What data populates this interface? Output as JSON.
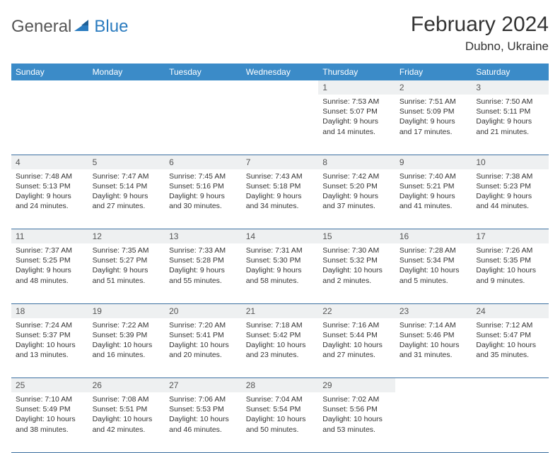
{
  "brand": {
    "part1": "General",
    "part2": "Blue"
  },
  "header": {
    "title": "February 2024",
    "location": "Dubno, Ukraine"
  },
  "colors": {
    "header_bg": "#3b8bc8",
    "header_text": "#ffffff",
    "daynum_bg": "#eef0f1",
    "rule": "#3b6fa0",
    "brand_blue": "#2a7bbf"
  },
  "daysOfWeek": [
    "Sunday",
    "Monday",
    "Tuesday",
    "Wednesday",
    "Thursday",
    "Friday",
    "Saturday"
  ],
  "weeks": [
    [
      null,
      null,
      null,
      null,
      {
        "n": "1",
        "sr": "7:53 AM",
        "ss": "5:07 PM",
        "dl": "9 hours and 14 minutes."
      },
      {
        "n": "2",
        "sr": "7:51 AM",
        "ss": "5:09 PM",
        "dl": "9 hours and 17 minutes."
      },
      {
        "n": "3",
        "sr": "7:50 AM",
        "ss": "5:11 PM",
        "dl": "9 hours and 21 minutes."
      }
    ],
    [
      {
        "n": "4",
        "sr": "7:48 AM",
        "ss": "5:13 PM",
        "dl": "9 hours and 24 minutes."
      },
      {
        "n": "5",
        "sr": "7:47 AM",
        "ss": "5:14 PM",
        "dl": "9 hours and 27 minutes."
      },
      {
        "n": "6",
        "sr": "7:45 AM",
        "ss": "5:16 PM",
        "dl": "9 hours and 30 minutes."
      },
      {
        "n": "7",
        "sr": "7:43 AM",
        "ss": "5:18 PM",
        "dl": "9 hours and 34 minutes."
      },
      {
        "n": "8",
        "sr": "7:42 AM",
        "ss": "5:20 PM",
        "dl": "9 hours and 37 minutes."
      },
      {
        "n": "9",
        "sr": "7:40 AM",
        "ss": "5:21 PM",
        "dl": "9 hours and 41 minutes."
      },
      {
        "n": "10",
        "sr": "7:38 AM",
        "ss": "5:23 PM",
        "dl": "9 hours and 44 minutes."
      }
    ],
    [
      {
        "n": "11",
        "sr": "7:37 AM",
        "ss": "5:25 PM",
        "dl": "9 hours and 48 minutes."
      },
      {
        "n": "12",
        "sr": "7:35 AM",
        "ss": "5:27 PM",
        "dl": "9 hours and 51 minutes."
      },
      {
        "n": "13",
        "sr": "7:33 AM",
        "ss": "5:28 PM",
        "dl": "9 hours and 55 minutes."
      },
      {
        "n": "14",
        "sr": "7:31 AM",
        "ss": "5:30 PM",
        "dl": "9 hours and 58 minutes."
      },
      {
        "n": "15",
        "sr": "7:30 AM",
        "ss": "5:32 PM",
        "dl": "10 hours and 2 minutes."
      },
      {
        "n": "16",
        "sr": "7:28 AM",
        "ss": "5:34 PM",
        "dl": "10 hours and 5 minutes."
      },
      {
        "n": "17",
        "sr": "7:26 AM",
        "ss": "5:35 PM",
        "dl": "10 hours and 9 minutes."
      }
    ],
    [
      {
        "n": "18",
        "sr": "7:24 AM",
        "ss": "5:37 PM",
        "dl": "10 hours and 13 minutes."
      },
      {
        "n": "19",
        "sr": "7:22 AM",
        "ss": "5:39 PM",
        "dl": "10 hours and 16 minutes."
      },
      {
        "n": "20",
        "sr": "7:20 AM",
        "ss": "5:41 PM",
        "dl": "10 hours and 20 minutes."
      },
      {
        "n": "21",
        "sr": "7:18 AM",
        "ss": "5:42 PM",
        "dl": "10 hours and 23 minutes."
      },
      {
        "n": "22",
        "sr": "7:16 AM",
        "ss": "5:44 PM",
        "dl": "10 hours and 27 minutes."
      },
      {
        "n": "23",
        "sr": "7:14 AM",
        "ss": "5:46 PM",
        "dl": "10 hours and 31 minutes."
      },
      {
        "n": "24",
        "sr": "7:12 AM",
        "ss": "5:47 PM",
        "dl": "10 hours and 35 minutes."
      }
    ],
    [
      {
        "n": "25",
        "sr": "7:10 AM",
        "ss": "5:49 PM",
        "dl": "10 hours and 38 minutes."
      },
      {
        "n": "26",
        "sr": "7:08 AM",
        "ss": "5:51 PM",
        "dl": "10 hours and 42 minutes."
      },
      {
        "n": "27",
        "sr": "7:06 AM",
        "ss": "5:53 PM",
        "dl": "10 hours and 46 minutes."
      },
      {
        "n": "28",
        "sr": "7:04 AM",
        "ss": "5:54 PM",
        "dl": "10 hours and 50 minutes."
      },
      {
        "n": "29",
        "sr": "7:02 AM",
        "ss": "5:56 PM",
        "dl": "10 hours and 53 minutes."
      },
      null,
      null
    ]
  ],
  "labels": {
    "sunrise": "Sunrise:",
    "sunset": "Sunset:",
    "daylight": "Daylight:"
  }
}
